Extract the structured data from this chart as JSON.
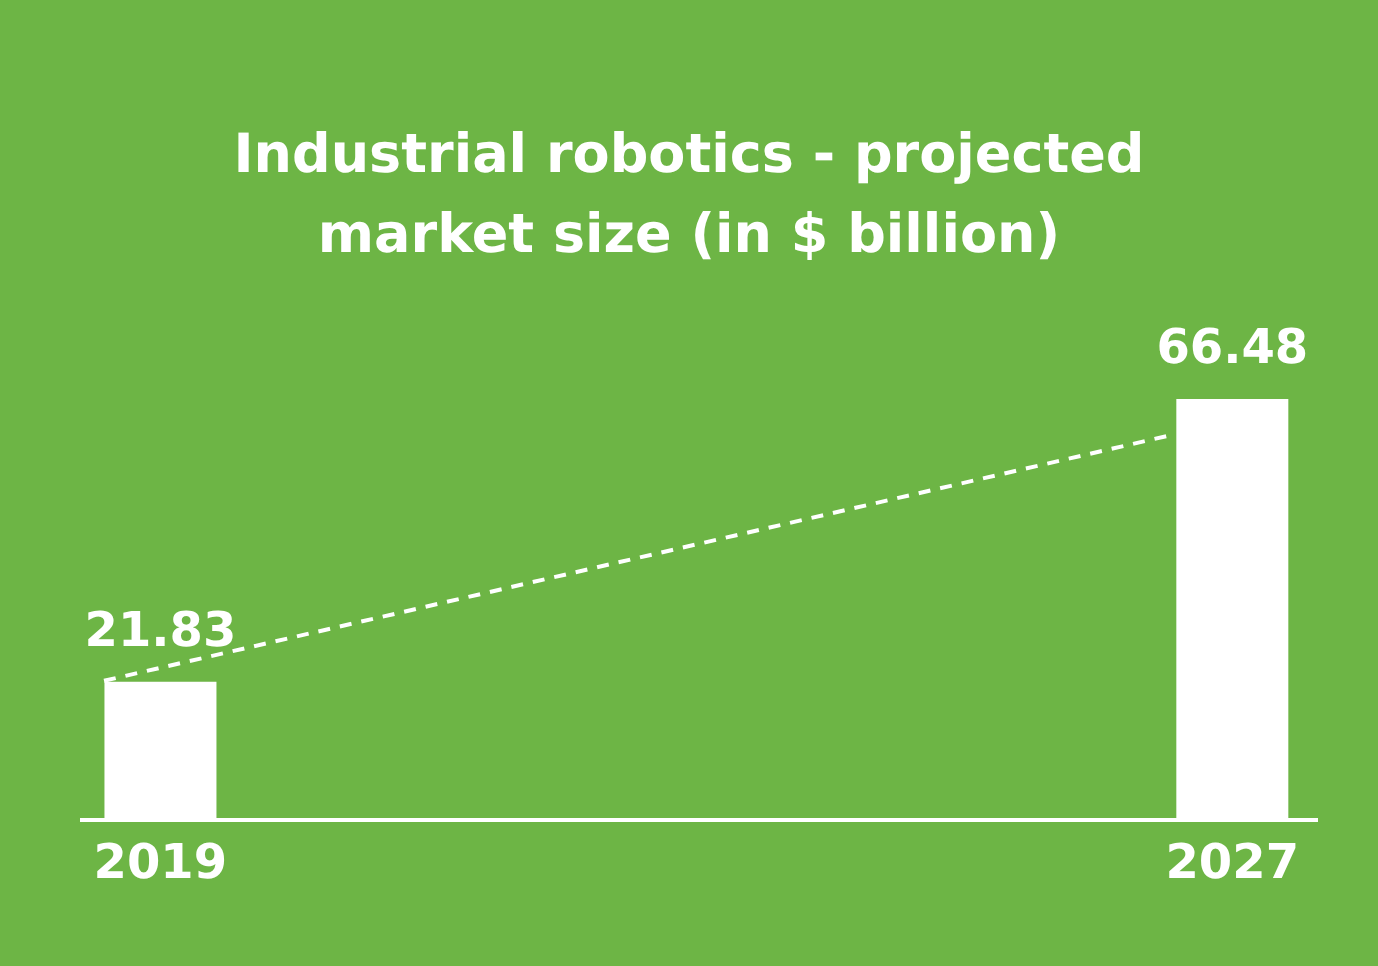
{
  "chart_data": {
    "type": "bar",
    "title": "Industrial robotics - projected market size (in $ billion)",
    "categories": [
      "2019",
      "2027"
    ],
    "data_labels": true,
    "color": "#ffffff",
    "values": [
      21.83,
      66.48
    ]
  }
}
